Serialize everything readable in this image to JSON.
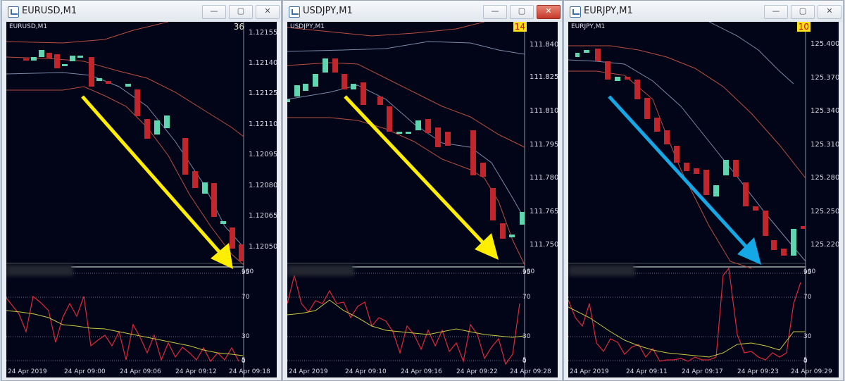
{
  "windows": [
    {
      "title": "EURUSD,M1",
      "symbol_label": "EURUSD,M1",
      "badge": "36",
      "badge_style": "plain",
      "close_active": false,
      "price_ticks": [
        "1.12155",
        "1.12140",
        "1.12125",
        "1.12110",
        "1.12095",
        "1.12080",
        "1.12065",
        "1.12050"
      ],
      "indicator_ticks": [
        "100",
        "95",
        "70",
        "30",
        "5",
        "0"
      ],
      "dates": [
        "24 Apr 2019",
        "24 Apr 09:00",
        "24 Apr 09:06",
        "24 Apr 09:12",
        "24 Apr 09:18"
      ],
      "arrow_color": "#ffee00"
    },
    {
      "title": "USDJPY,M1",
      "symbol_label": "USDJPY,M1",
      "badge": "14",
      "badge_style": "yellow",
      "close_active": true,
      "price_ticks": [
        "111.840",
        "111.825",
        "111.810",
        "111.795",
        "111.780",
        "111.765",
        "111.750"
      ],
      "indicator_ticks": [
        "100",
        "95",
        "70",
        "30",
        "5",
        "0"
      ],
      "dates": [
        "24 Apr 2019",
        "24 Apr 09:10",
        "24 Apr 09:16",
        "24 Apr 09:22",
        "24 Apr 09:28"
      ],
      "arrow_color": "#ffee00"
    },
    {
      "title": "EURJPY,M1",
      "symbol_label": "EURJPY,M1",
      "badge": "10",
      "badge_style": "half",
      "close_active": false,
      "price_ticks": [
        "125.400",
        "125.370",
        "125.340",
        "125.310",
        "125.280",
        "125.250",
        "125.220"
      ],
      "indicator_ticks": [
        "100",
        "95",
        "70",
        "30",
        "5",
        "0"
      ],
      "dates": [
        "24 Apr 2019",
        "24 Apr 09:11",
        "24 Apr 09:17",
        "24 Apr 09:23",
        "24 Apr 09:29"
      ],
      "arrow_color": "#14a9e6"
    }
  ],
  "window_buttons": {
    "minimize": "—",
    "maximize": "▢",
    "close": "✕"
  },
  "colors": {
    "bull": "#5fd6b0",
    "bear": "#c0262b",
    "rsi": "#e0283a",
    "signal": "#c8c840",
    "band_outer": "#b85040",
    "band_mid": "#7a8aa8"
  }
}
